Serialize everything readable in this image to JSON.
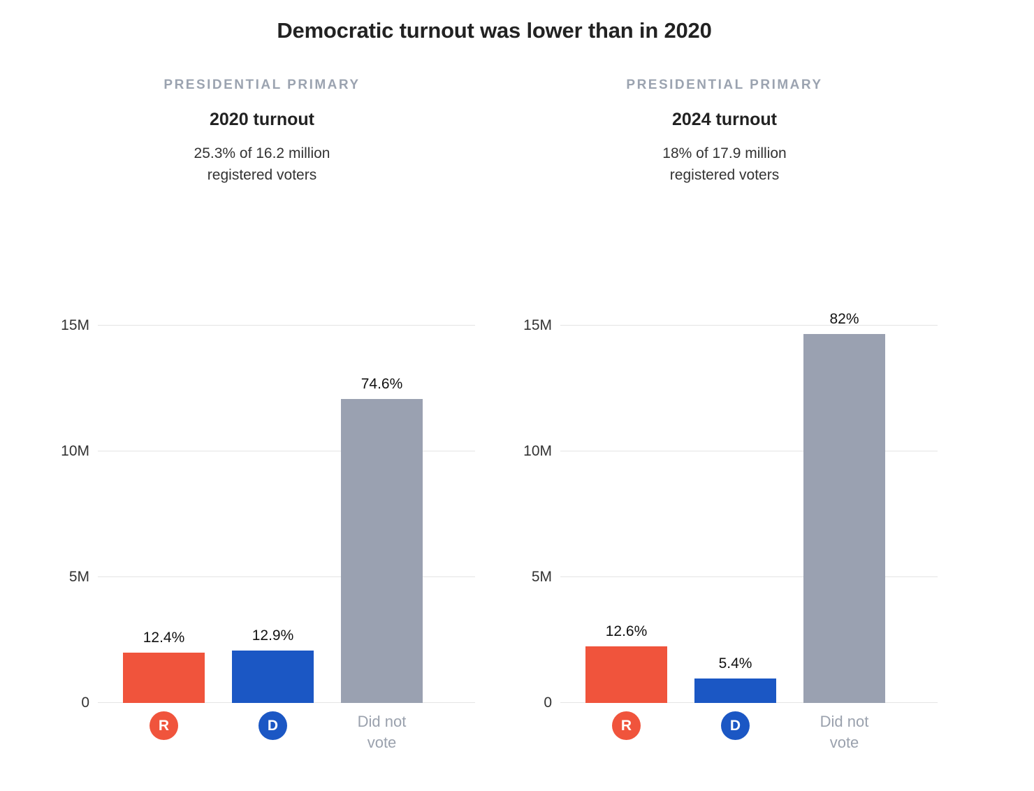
{
  "page": {
    "title": "Democratic turnout was lower than in 2020"
  },
  "colors": {
    "republican": "#F0543C",
    "democrat": "#1B57C4",
    "did_not_vote_gray": "#9AA1B1",
    "kicker_gray": "#9BA3B0",
    "axis_text": "#333333",
    "gridline": "#E4E4E4",
    "value_label": "#111111",
    "title_text": "#222222",
    "category_text": "#9AA1AD"
  },
  "chart_data": [
    {
      "type": "bar",
      "kicker": "PRESIDENTIAL PRIMARY",
      "title": "2020 turnout",
      "subtitle": "25.3% of 16.2 million registered voters",
      "subtitle_lines": [
        "25.3% of 16.2 million",
        "registered voters"
      ],
      "turnout_pct": 25.3,
      "registered_voters_millions": 16.2,
      "categories": [
        "R",
        "D",
        "Did not vote"
      ],
      "value_labels": [
        "12.4%",
        "12.9%",
        "74.6%"
      ],
      "values_pct": [
        12.4,
        12.9,
        74.6
      ],
      "values_millions": [
        2.01,
        2.09,
        12.09
      ],
      "bar_colors": [
        "#F0543C",
        "#1B57C4",
        "#9AA1B1"
      ],
      "yticks": [
        {
          "label": "0",
          "millions": 0
        },
        {
          "label": "5M",
          "millions": 5
        },
        {
          "label": "10M",
          "millions": 10
        },
        {
          "label": "15M",
          "millions": 15
        }
      ],
      "ylim_millions": [
        0,
        15
      ],
      "grid": true,
      "legend": "none"
    },
    {
      "type": "bar",
      "kicker": "PRESIDENTIAL PRIMARY",
      "title": "2024 turnout",
      "subtitle": "18% of 17.9 million registered voters",
      "subtitle_lines": [
        "18% of 17.9 million",
        "registered voters"
      ],
      "turnout_pct": 18,
      "registered_voters_millions": 17.9,
      "categories": [
        "R",
        "D",
        "Did not vote"
      ],
      "value_labels": [
        "12.6%",
        "5.4%",
        "82%"
      ],
      "values_pct": [
        12.6,
        5.4,
        82
      ],
      "values_millions": [
        2.26,
        0.97,
        14.68
      ],
      "bar_colors": [
        "#F0543C",
        "#1B57C4",
        "#9AA1B1"
      ],
      "yticks": [
        {
          "label": "0",
          "millions": 0
        },
        {
          "label": "5M",
          "millions": 5
        },
        {
          "label": "10M",
          "millions": 10
        },
        {
          "label": "15M",
          "millions": 15
        }
      ],
      "ylim_millions": [
        0,
        15
      ],
      "grid": true,
      "legend": "none"
    }
  ]
}
